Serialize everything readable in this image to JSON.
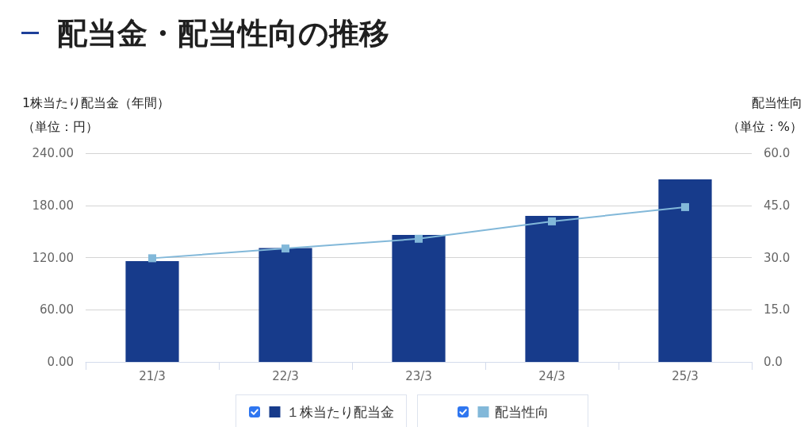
{
  "chart_data": {
    "type": "bar",
    "title": "配当金・配当性向の推移",
    "ylabel": "1株当たり配当金（年間）",
    "y2label": "配当性向",
    "annotations": [
      "（単位：円）",
      "（単位：%）"
    ],
    "categories": [
      "21/3",
      "22/3",
      "23/3",
      "24/3",
      "25/3"
    ],
    "series": [
      {
        "name": "１株当たり配当金",
        "color": "#173b8b",
        "values": [
          116,
          131,
          146,
          168,
          210
        ]
      },
      {
        "name": "配当性向",
        "type": "line",
        "axis": "y2",
        "color": "#82b8d9",
        "values": [
          29.8,
          32.6,
          35.4,
          40.4,
          44.5
        ]
      }
    ],
    "ylim": [
      0,
      240
    ],
    "yticks": [
      {
        "value": 0,
        "label": "0.00"
      },
      {
        "value": 60,
        "label": "60.00"
      },
      {
        "value": 120,
        "label": "120.00"
      },
      {
        "value": 180,
        "label": "180.00"
      },
      {
        "value": 240,
        "label": "240.00"
      }
    ],
    "y2lim": [
      0,
      60
    ],
    "y2ticks": [
      {
        "value": 0,
        "label": "0.0"
      },
      {
        "value": 15,
        "label": "15.0"
      },
      {
        "value": 30,
        "label": "30.0"
      },
      {
        "value": 45,
        "label": "45.0"
      },
      {
        "value": 60,
        "label": "60.0"
      }
    ],
    "grid": "y",
    "legend": "bottom",
    "marker": "square",
    "line_style": "solid"
  }
}
